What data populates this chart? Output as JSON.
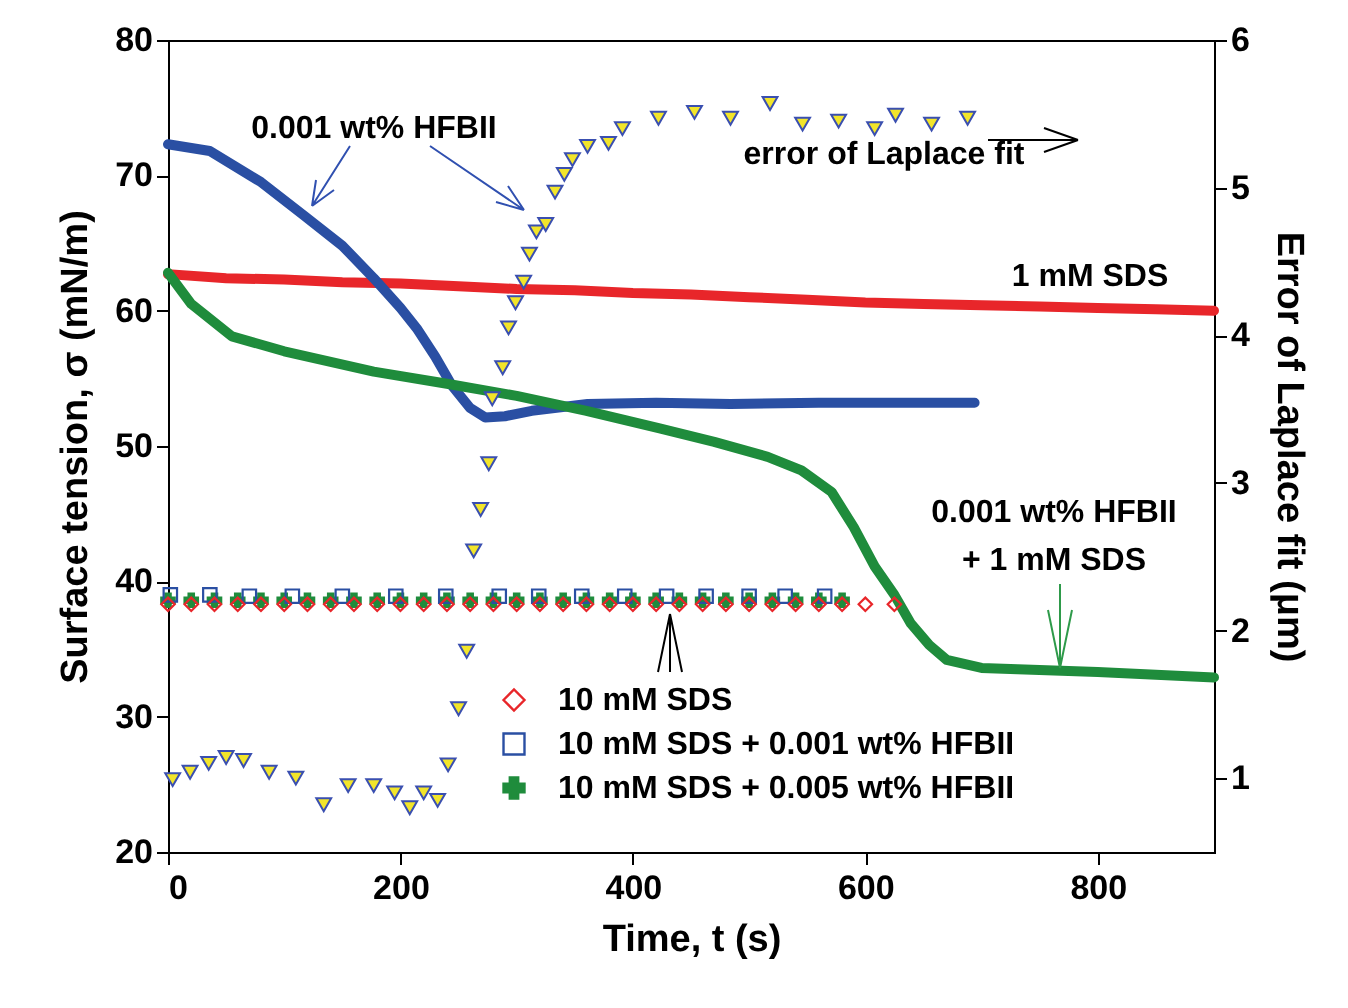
{
  "chart_data": {
    "type": "line",
    "xlabel": "Time, t (s)",
    "ylabel": "Surface tension, σ (mN/m)",
    "y2label": "Error of Laplace fit (μm)",
    "xlim": [
      0,
      900
    ],
    "xticks": [
      0,
      200,
      400,
      600,
      800
    ],
    "ylim": [
      20,
      80
    ],
    "yticks": [
      20,
      30,
      40,
      50,
      60,
      70,
      80
    ],
    "y2lim": [
      0.5,
      6
    ],
    "y2ticks": [
      1,
      2,
      3,
      4,
      5,
      6
    ],
    "grid": false,
    "legend": "bottom",
    "series": [
      {
        "name": "1 mM SDS",
        "color": "#e8262a",
        "x": [
          0,
          50,
          100,
          150,
          200,
          250,
          300,
          350,
          400,
          450,
          500,
          550,
          600,
          650,
          700,
          750,
          800,
          850,
          900
        ],
        "values": [
          62.7,
          62.4,
          62.3,
          62.1,
          62.0,
          61.8,
          61.6,
          61.5,
          61.3,
          61.2,
          61.0,
          60.8,
          60.6,
          60.5,
          60.4,
          60.3,
          60.2,
          60.1,
          60.0
        ]
      },
      {
        "name": "0.001 wt% HFBII",
        "color": "#2a4fa3",
        "x": [
          0,
          36,
          80,
          116,
          150,
          177,
          200,
          214,
          230,
          244,
          260,
          273,
          290,
          313,
          361,
          420,
          484,
          560,
          694
        ],
        "values": [
          72.3,
          71.8,
          69.5,
          67.1,
          64.8,
          62.4,
          60.2,
          58.7,
          56.6,
          54.5,
          52.8,
          52.1,
          52.2,
          52.6,
          53.1,
          53.2,
          53.1,
          53.2,
          53.2
        ]
      },
      {
        "name": "0.001 wt% HFBII + 1 mM SDS",
        "color": "#1f8c3c",
        "x": [
          0,
          20,
          55,
          100,
          177,
          240,
          300,
          360,
          423,
          470,
          516,
          545,
          571,
          590,
          608,
          625,
          639,
          655,
          670,
          700,
          731,
          800,
          900
        ],
        "values": [
          62.8,
          60.5,
          58.1,
          57.0,
          55.5,
          54.6,
          53.7,
          52.6,
          51.3,
          50.3,
          49.2,
          48.2,
          46.6,
          44.0,
          41.1,
          39.0,
          36.9,
          35.3,
          34.2,
          33.6,
          33.5,
          33.3,
          32.9
        ]
      },
      {
        "name": "error of Laplace fit",
        "type": "scatter",
        "axis": "y2",
        "marker": "triangle",
        "color": "#f2e52a",
        "x": [
          4,
          19,
          35,
          50,
          65,
          87,
          110,
          134,
          155,
          177,
          195,
          208,
          220,
          232,
          241,
          250,
          257,
          263,
          269,
          276,
          279,
          288,
          293,
          299,
          306,
          311,
          317,
          325,
          333,
          341,
          348,
          361,
          379,
          391,
          422,
          453,
          484,
          518,
          546,
          577,
          608,
          626,
          657,
          688
        ],
        "values": [
          0.99,
          1.04,
          1.1,
          1.14,
          1.12,
          1.04,
          1.0,
          0.82,
          0.95,
          0.95,
          0.9,
          0.8,
          0.9,
          0.85,
          1.09,
          1.47,
          1.86,
          2.54,
          2.82,
          3.13,
          3.57,
          3.78,
          4.05,
          4.22,
          4.36,
          4.55,
          4.7,
          4.75,
          4.97,
          5.09,
          5.19,
          5.28,
          5.3,
          5.4,
          5.47,
          5.51,
          5.47,
          5.57,
          5.43,
          5.45,
          5.4,
          5.49,
          5.43,
          5.47
        ]
      },
      {
        "name": "10 mM SDS",
        "type": "scatter",
        "marker": "diamond",
        "color": "#e8262a",
        "x": [
          0,
          20,
          40,
          60,
          80,
          100,
          120,
          140,
          160,
          180,
          200,
          220,
          240,
          260,
          280,
          300,
          320,
          340,
          360,
          380,
          400,
          420,
          440,
          460,
          480,
          500,
          520,
          540,
          560,
          580,
          600,
          625
        ],
        "values": [
          38.3,
          38.3,
          38.3,
          38.3,
          38.3,
          38.3,
          38.3,
          38.3,
          38.3,
          38.3,
          38.3,
          38.3,
          38.3,
          38.3,
          38.3,
          38.3,
          38.3,
          38.3,
          38.3,
          38.3,
          38.3,
          38.3,
          38.3,
          38.3,
          38.3,
          38.3,
          38.3,
          38.3,
          38.3,
          38.3,
          38.3,
          38.3
        ]
      },
      {
        "name": "10 mM SDS + 0.001 wt% HFBII",
        "type": "scatter",
        "marker": "square",
        "color": "#2a4fa3",
        "x": [
          2,
          36,
          70,
          107,
          150,
          196,
          239,
          285,
          319,
          356,
          393,
          429,
          463,
          500,
          531,
          565
        ],
        "values": [
          39.0,
          39.0,
          38.9,
          38.9,
          38.9,
          38.9,
          38.9,
          38.9,
          38.9,
          38.9,
          38.9,
          38.9,
          38.9,
          38.9,
          38.9,
          38.9
        ]
      },
      {
        "name": "10 mM SDS + 0.005 wt% HFBII",
        "type": "scatter",
        "marker": "cross",
        "color": "#1f8c3c",
        "x": [
          0,
          20,
          40,
          60,
          80,
          100,
          120,
          140,
          160,
          180,
          200,
          220,
          240,
          260,
          280,
          300,
          320,
          340,
          360,
          380,
          400,
          420,
          440,
          460,
          480,
          500,
          520,
          540,
          560,
          580
        ],
        "values": [
          38.6,
          38.6,
          38.6,
          38.6,
          38.6,
          38.6,
          38.6,
          38.6,
          38.6,
          38.6,
          38.6,
          38.6,
          38.6,
          38.6,
          38.6,
          38.6,
          38.6,
          38.6,
          38.6,
          38.6,
          38.6,
          38.6,
          38.6,
          38.6,
          38.6,
          38.6,
          38.6,
          38.6,
          38.6,
          38.6
        ]
      }
    ]
  }
}
